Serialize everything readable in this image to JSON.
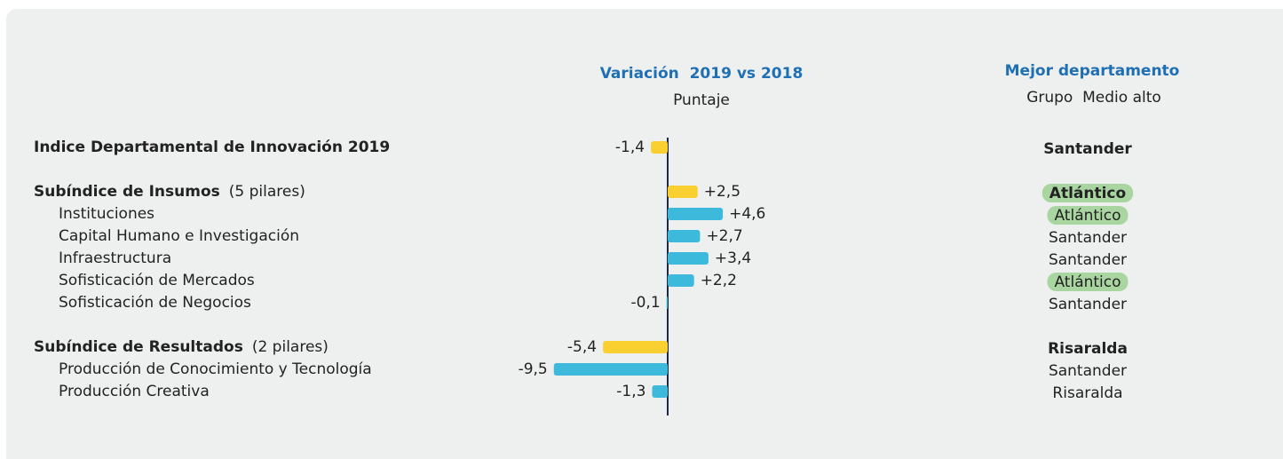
{
  "chart_data": {
    "type": "bar",
    "orientation": "horizontal",
    "title": "Variación  2019 vs 2018",
    "subtitle": "Puntaje",
    "categories": [
      "Indice Departamental de Innovación 2019",
      "Subíndice de Insumos",
      "Instituciones",
      "Capital Humano e Investigación",
      "Infraestructura",
      "Sofisticación de Mercados",
      "Sofisticación de Negocios",
      "Subíndice de Resultados",
      "Producción de Conocimiento y Tecnología",
      "Producción Creativa"
    ],
    "category_notes": [
      null,
      "(5 pilares)",
      null,
      null,
      null,
      null,
      null,
      "(2 pilares)",
      null,
      null
    ],
    "emphasis": [
      true,
      true,
      false,
      false,
      false,
      false,
      false,
      true,
      false,
      false
    ],
    "values": [
      -1.4,
      2.5,
      4.6,
      2.7,
      3.4,
      2.2,
      -0.1,
      -5.4,
      -9.5,
      -1.3
    ],
    "value_labels": [
      "-1,4",
      "+2,5",
      "+4,6",
      "+2,7",
      "+3,4",
      "+2,2",
      "-0,1",
      "-5,4",
      "-9,5",
      "-1,3"
    ],
    "colors": [
      "#f9d030",
      "#f9d030",
      "#3cb9db",
      "#3cb9db",
      "#3cb9db",
      "#3cb9db",
      "#3cb9db",
      "#f9d030",
      "#3cb9db",
      "#3cb9db"
    ],
    "xlim": [
      -10,
      10
    ],
    "best": {
      "title": "Mejor departamento",
      "subtitle": "Grupo  Medio alto",
      "values": [
        "Santander",
        "Atlántico",
        "Atlántico",
        "Santander",
        "Santander",
        "Atlántico",
        "Santander",
        "Risaralda",
        "Santander",
        "Risaralda"
      ],
      "highlight": [
        false,
        true,
        true,
        false,
        false,
        true,
        false,
        false,
        false,
        false
      ],
      "highlight_color": "#a9d6a0"
    }
  }
}
